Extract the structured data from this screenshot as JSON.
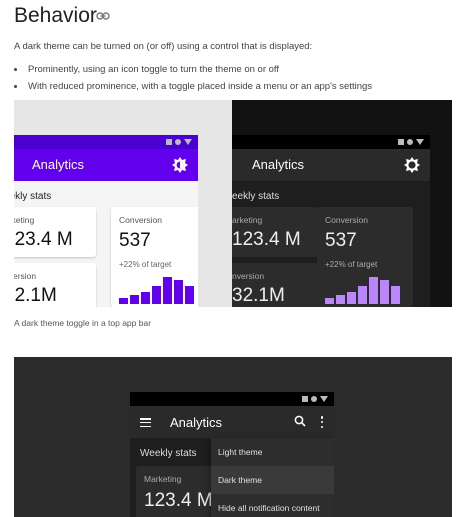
{
  "section": {
    "title": "Behavior",
    "link_icon": "link-icon",
    "intro": "A dark theme can be turned on (or off) using a control that is displayed:",
    "bullets": [
      "Prominently, using an icon toggle to turn the theme on or off",
      "With reduced prominence, with a toggle placed inside a menu or an app's settings"
    ]
  },
  "figure1": {
    "caption": "A dark theme toggle in a top app bar",
    "app_title": "Analytics",
    "toggle_icon": "brightness-toggle-icon",
    "weekly_stats": "eekly stats",
    "marketing_label": "arketing",
    "marketing_value": "123.4 M",
    "conversion_label": "Conversion",
    "conversion_value": "537",
    "conversion_sub": "+22% of target",
    "conversion2_label": "nversion",
    "conversion2_value": "32.1M",
    "spark_values": [
      2,
      3,
      4,
      6,
      9,
      8,
      6
    ]
  },
  "figure2": {
    "app_title": "Analytics",
    "menu_icon": "hamburger-icon",
    "search_icon": "search-icon",
    "more_icon": "more-vert-icon",
    "weekly_stats": "Weekly stats",
    "marketing_label": "Marketing",
    "marketing_value": "123.4 M",
    "menu_items": [
      "Light theme",
      "Dark theme",
      "Hide all notification content"
    ],
    "selected_item": "Dark theme"
  },
  "colors": {
    "light_primary": "#6200ee",
    "dark_accent": "#bb86fc",
    "dark_surface": "#1e1e1e"
  }
}
